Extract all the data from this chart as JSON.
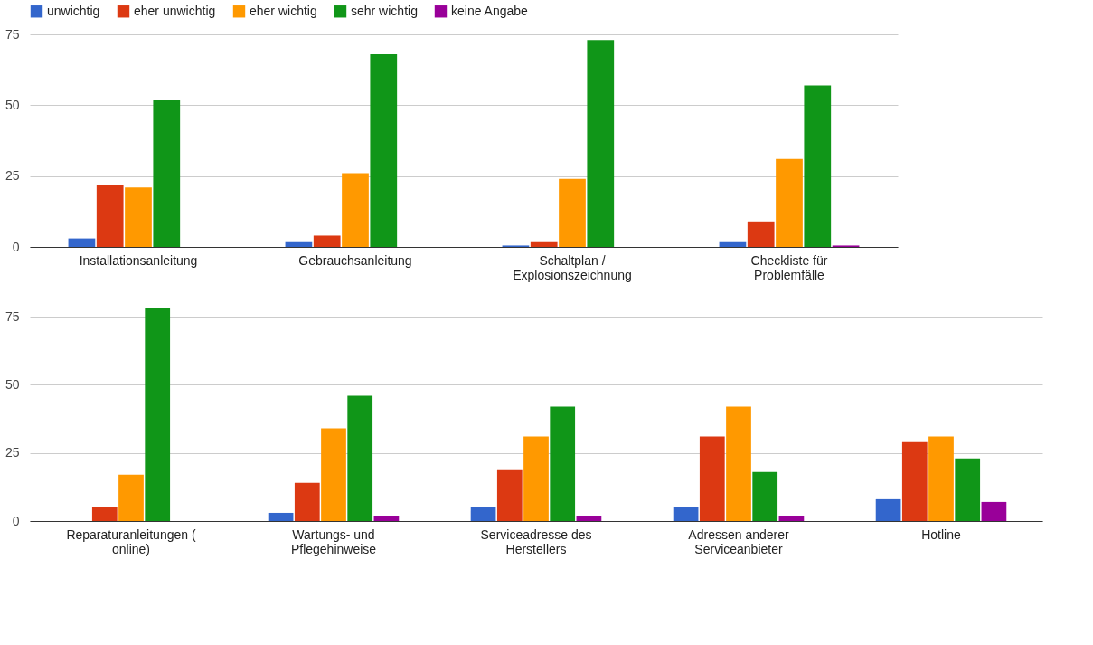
{
  "chart_data": [
    {
      "type": "bar",
      "categories": [
        "Installationsanleitung",
        "Gebrauchsanleitung",
        "Schaltplan / Explosionszeichnung",
        "Checkliste für Problemfälle"
      ],
      "series": [
        {
          "name": "unwichtig",
          "color": "#3366cc",
          "values": [
            3,
            2,
            0.5,
            2
          ]
        },
        {
          "name": "eher unwichtig",
          "color": "#dc3912",
          "values": [
            22,
            4,
            2,
            9
          ]
        },
        {
          "name": "eher wichtig",
          "color": "#ff9900",
          "values": [
            21,
            26,
            24,
            31
          ]
        },
        {
          "name": "sehr wichtig",
          "color": "#109618",
          "values": [
            52,
            68,
            73,
            57
          ]
        },
        {
          "name": "keine Angabe",
          "color": "#990099",
          "values": [
            0,
            0,
            0,
            0.5
          ]
        }
      ],
      "ylim": [
        0,
        75
      ],
      "yticks": [
        0,
        25,
        50,
        75
      ],
      "grid": "y",
      "legend": "top"
    },
    {
      "type": "bar",
      "categories": [
        "Reparaturanleitungen ( online)",
        "Wartungs- und Pflegehinweise",
        "Serviceadresse des Herstellers",
        "Adressen anderer Serviceanbieter",
        "Hotline"
      ],
      "series": [
        {
          "name": "unwichtig",
          "color": "#3366cc",
          "values": [
            0,
            3,
            5,
            5,
            8
          ]
        },
        {
          "name": "eher unwichtig",
          "color": "#dc3912",
          "values": [
            5,
            14,
            19,
            31,
            29
          ]
        },
        {
          "name": "eher wichtig",
          "color": "#ff9900",
          "values": [
            17,
            34,
            31,
            42,
            31
          ]
        },
        {
          "name": "sehr wichtig",
          "color": "#109618",
          "values": [
            78,
            46,
            42,
            18,
            23
          ]
        },
        {
          "name": "keine Angabe",
          "color": "#990099",
          "values": [
            0,
            2,
            2,
            2,
            7
          ]
        }
      ],
      "ylim": [
        0,
        78
      ],
      "yticks": [
        0,
        25,
        50,
        75
      ],
      "grid": "y",
      "legend": false
    }
  ]
}
